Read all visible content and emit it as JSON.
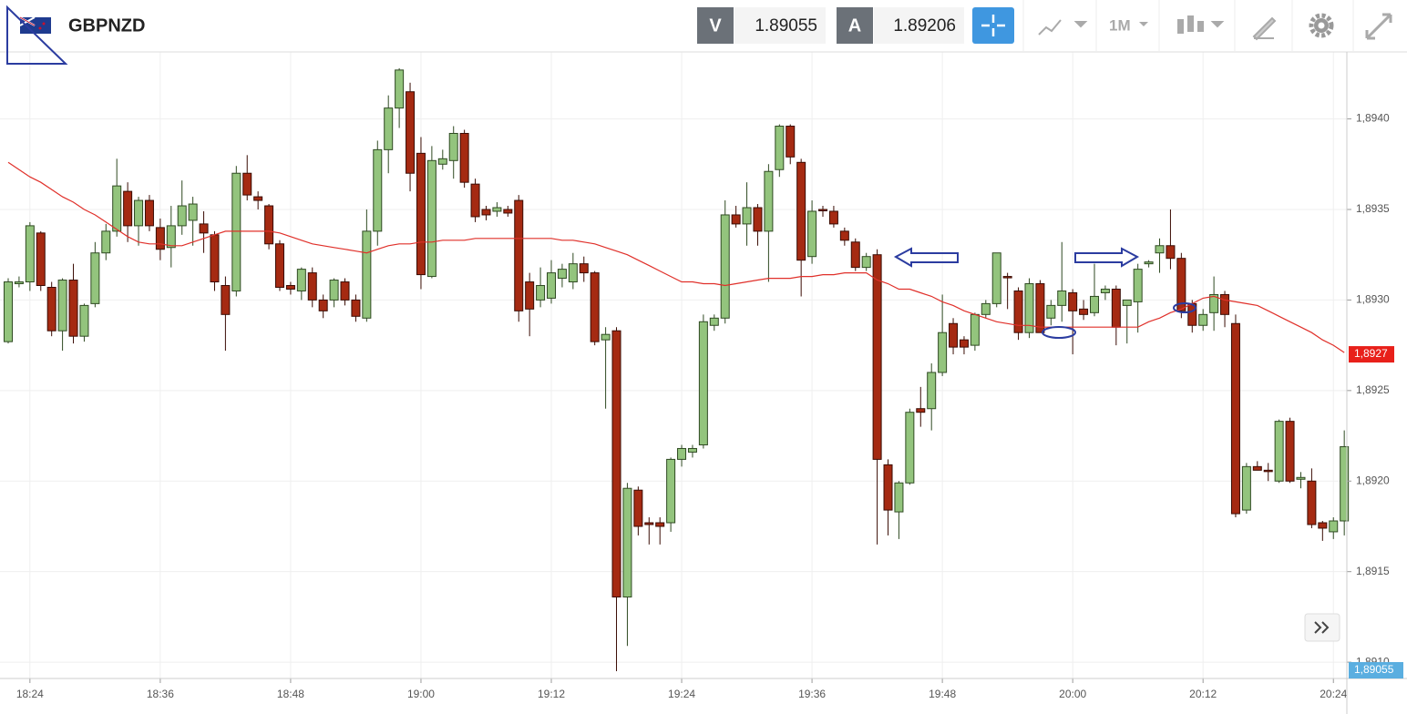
{
  "toolbar": {
    "symbol": "GBPNZD",
    "bid_label": "V",
    "bid": "1.89055",
    "ask_label": "A",
    "ask": "1.89206",
    "timeframe": "1M"
  },
  "chart_data": {
    "type": "candlestick",
    "categories": [
      null,
      null,
      "18:24",
      null,
      null,
      null,
      null,
      null,
      null,
      null,
      null,
      null,
      null,
      null,
      "18:36",
      null,
      null,
      null,
      null,
      null,
      null,
      null,
      null,
      null,
      null,
      null,
      "18:48",
      null,
      null,
      null,
      null,
      null,
      null,
      null,
      null,
      null,
      null,
      null,
      "19:00",
      null,
      null,
      null,
      null,
      null,
      null,
      null,
      null,
      null,
      null,
      null,
      "19:12",
      null,
      null,
      null,
      null,
      null,
      null,
      null,
      null,
      null,
      null,
      null,
      "19:24",
      null,
      null,
      null,
      null,
      null,
      null,
      null,
      null,
      null,
      null,
      null,
      "19:36",
      null,
      null,
      null,
      null,
      null,
      null,
      null,
      null,
      null,
      null,
      null,
      "19:48",
      null,
      null,
      null,
      null,
      null,
      null,
      null,
      null,
      null,
      null,
      null,
      "20:00",
      null,
      null,
      null,
      null,
      null,
      null,
      null,
      null,
      null,
      null,
      null,
      "20:12",
      null,
      null,
      null,
      null,
      null,
      null,
      null,
      null,
      null,
      null,
      null,
      "20:24",
      null
    ],
    "open": [
      1.89277,
      1.89309,
      1.8931,
      1.89337,
      1.89307,
      1.89283,
      1.89311,
      1.8928,
      1.89298,
      1.89326,
      1.89338,
      1.8936,
      1.89341,
      1.89355,
      1.8934,
      1.89329,
      1.89341,
      1.89344,
      1.89342,
      1.89336,
      1.89308,
      1.89305,
      1.8937,
      1.89357,
      1.89352,
      1.89331,
      1.89308,
      1.89305,
      1.89315,
      1.893,
      1.893,
      1.8931,
      1.893,
      1.8929,
      1.89338,
      1.89383,
      1.89406,
      1.89415,
      1.89381,
      1.89313,
      1.89375,
      1.89377,
      1.89392,
      1.89364,
      1.8935,
      1.89349,
      1.8935,
      1.89355,
      1.8931,
      1.893,
      1.89301,
      1.89312,
      1.8931,
      1.8932,
      1.89315,
      1.89278,
      1.89283,
      1.89136,
      1.89195,
      1.89177,
      1.89177,
      1.89177,
      1.89212,
      1.89216,
      1.8922,
      1.89286,
      1.8929,
      1.89347,
      1.89342,
      1.89351,
      1.89338,
      1.89372,
      1.89396,
      1.89376,
      1.89324,
      1.8935,
      1.89349,
      1.89338,
      1.89332,
      1.89318,
      1.89325,
      1.89209,
      1.89183,
      1.89199,
      1.8924,
      1.8924,
      1.8926,
      1.89287,
      1.89278,
      1.89275,
      1.89292,
      1.89298,
      1.89313,
      1.89305,
      1.89282,
      1.89309,
      1.8929,
      1.89297,
      1.89304,
      1.89295,
      1.89293,
      1.89304,
      1.89306,
      1.89297,
      1.89299,
      1.8932,
      1.89326,
      1.8933,
      1.89323,
      1.89298,
      1.89286,
      1.89293,
      1.89303,
      1.89287,
      1.89184,
      1.89208,
      1.89206,
      1.892,
      1.89233,
      1.89201,
      1.892,
      1.89177,
      1.89172,
      1.89178
    ],
    "high": [
      1.89312,
      1.89313,
      1.89343,
      1.89338,
      1.8931,
      1.89312,
      1.8932,
      1.89298,
      1.89332,
      1.89342,
      1.89378,
      1.89365,
      1.89357,
      1.89358,
      1.89345,
      1.89352,
      1.89366,
      1.89357,
      1.89349,
      1.89338,
      1.89313,
      1.89374,
      1.8938,
      1.8936,
      1.89353,
      1.89333,
      1.8931,
      1.89318,
      1.89318,
      1.89303,
      1.89312,
      1.89312,
      1.89303,
      1.8935,
      1.89388,
      1.89413,
      1.89428,
      1.8942,
      1.8939,
      1.89385,
      1.89383,
      1.89396,
      1.89394,
      1.89367,
      1.89352,
      1.89354,
      1.89352,
      1.89358,
      1.89315,
      1.89318,
      1.89322,
      1.8932,
      1.89326,
      1.89324,
      1.89316,
      1.89285,
      1.89285,
      1.89199,
      1.89197,
      1.8918,
      1.8918,
      1.89213,
      1.8922,
      1.8922,
      1.89292,
      1.89292,
      1.89355,
      1.89352,
      1.89365,
      1.89353,
      1.89375,
      1.89397,
      1.89397,
      1.89378,
      1.89355,
      1.89352,
      1.89352,
      1.8934,
      1.89334,
      1.89326,
      1.89328,
      1.89212,
      1.892,
      1.8924,
      1.89252,
      1.89265,
      1.89303,
      1.8929,
      1.8928,
      1.89293,
      1.893,
      1.89326,
      1.89315,
      1.89307,
      1.89312,
      1.89311,
      1.893,
      1.89332,
      1.89306,
      1.893,
      1.8932,
      1.89308,
      1.89308,
      1.893,
      1.8932,
      1.89322,
      1.89334,
      1.8935,
      1.89326,
      1.893,
      1.89295,
      1.89313,
      1.89305,
      1.89292,
      1.8921,
      1.89211,
      1.8921,
      1.89234,
      1.89235,
      1.89205,
      1.89207,
      1.89178,
      1.8918,
      1.89228
    ],
    "low": [
      1.89276,
      1.89307,
      1.89305,
      1.89305,
      1.8928,
      1.89272,
      1.89276,
      1.89277,
      1.89296,
      1.89322,
      1.89335,
      1.89332,
      1.8933,
      1.89338,
      1.89322,
      1.89318,
      1.89336,
      1.8933,
      1.89326,
      1.89305,
      1.89272,
      1.89302,
      1.89355,
      1.8935,
      1.89328,
      1.89305,
      1.89303,
      1.893,
      1.89296,
      1.8929,
      1.89296,
      1.89297,
      1.89288,
      1.89288,
      1.8933,
      1.8937,
      1.89395,
      1.8936,
      1.89306,
      1.89312,
      1.89372,
      1.89367,
      1.89362,
      1.89343,
      1.89344,
      1.89346,
      1.89346,
      1.89288,
      1.8928,
      1.89296,
      1.89298,
      1.89307,
      1.89306,
      1.8931,
      1.89275,
      1.8924,
      1.89095,
      1.89109,
      1.8917,
      1.89165,
      1.89165,
      1.89172,
      1.89208,
      1.89213,
      1.89218,
      1.89283,
      1.89287,
      1.8934,
      1.8933,
      1.8933,
      1.8931,
      1.89368,
      1.89375,
      1.89302,
      1.8932,
      1.89346,
      1.8934,
      1.8933,
      1.89316,
      1.89316,
      1.89165,
      1.8917,
      1.89168,
      1.89198,
      1.8923,
      1.89228,
      1.89258,
      1.8927,
      1.8927,
      1.89272,
      1.8929,
      1.89296,
      1.89295,
      1.89278,
      1.89279,
      1.89282,
      1.89286,
      1.89288,
      1.8927,
      1.89289,
      1.89291,
      1.893,
      1.89275,
      1.89276,
      1.89282,
      1.89318,
      1.89315,
      1.89317,
      1.8929,
      1.89282,
      1.89283,
      1.89283,
      1.89285,
      1.8918,
      1.89182,
      1.89206,
      1.892,
      1.89199,
      1.89199,
      1.89196,
      1.89174,
      1.89167,
      1.89168,
      1.8917
    ],
    "close": [
      1.8931,
      1.8931,
      1.89341,
      1.89308,
      1.89283,
      1.89311,
      1.8928,
      1.89297,
      1.89326,
      1.89338,
      1.89363,
      1.89341,
      1.89355,
      1.89341,
      1.89328,
      1.89341,
      1.89352,
      1.89353,
      1.89337,
      1.8931,
      1.89292,
      1.8937,
      1.89358,
      1.89355,
      1.89331,
      1.89307,
      1.89306,
      1.89317,
      1.893,
      1.89294,
      1.89311,
      1.893,
      1.89291,
      1.89338,
      1.89383,
      1.89406,
      1.89427,
      1.8937,
      1.89314,
      1.89377,
      1.89378,
      1.89392,
      1.89365,
      1.89346,
      1.89347,
      1.89351,
      1.89348,
      1.89294,
      1.89295,
      1.89308,
      1.89315,
      1.89317,
      1.8932,
      1.89315,
      1.89277,
      1.89281,
      1.89136,
      1.89196,
      1.89175,
      1.89176,
      1.89175,
      1.89212,
      1.89218,
      1.89218,
      1.89288,
      1.8929,
      1.89347,
      1.89342,
      1.89351,
      1.89338,
      1.89371,
      1.89396,
      1.89379,
      1.89322,
      1.89349,
      1.8935,
      1.89342,
      1.89333,
      1.89318,
      1.89324,
      1.89212,
      1.89184,
      1.89199,
      1.89238,
      1.89238,
      1.8926,
      1.89282,
      1.89274,
      1.89274,
      1.89292,
      1.89298,
      1.89326,
      1.89313,
      1.89282,
      1.89309,
      1.89282,
      1.89297,
      1.89305,
      1.89294,
      1.89292,
      1.89302,
      1.89306,
      1.89285,
      1.893,
      1.89317,
      1.89321,
      1.8933,
      1.89323,
      1.89294,
      1.89286,
      1.89292,
      1.89303,
      1.89292,
      1.89182,
      1.89208,
      1.89206,
      1.89206,
      1.89233,
      1.892,
      1.89202,
      1.89176,
      1.89174,
      1.89178,
      1.89219
    ],
    "up_color": "#93c47d",
    "down_color": "#a52a12",
    "lines": [
      {
        "color": "#e0302a",
        "values": [
          1.89376,
          1.89372,
          1.89368,
          1.89365,
          1.89361,
          1.89357,
          1.89354,
          1.8935,
          1.89347,
          1.89343,
          1.89339,
          1.89335,
          1.89332,
          1.89331,
          1.89331,
          1.8933,
          1.8933,
          1.89332,
          1.89334,
          1.89336,
          1.89338,
          1.89338,
          1.89338,
          1.89338,
          1.89338,
          1.89337,
          1.89335,
          1.89333,
          1.89331,
          1.8933,
          1.89329,
          1.89328,
          1.89327,
          1.89326,
          1.89328,
          1.8933,
          1.89331,
          1.89331,
          1.89332,
          1.89332,
          1.89333,
          1.89333,
          1.89333,
          1.89334,
          1.89334,
          1.89334,
          1.89334,
          1.89334,
          1.89334,
          1.89334,
          1.89334,
          1.89333,
          1.89333,
          1.89332,
          1.89331,
          1.89329,
          1.89327,
          1.89325,
          1.89322,
          1.89319,
          1.89316,
          1.89313,
          1.8931,
          1.8931,
          1.89309,
          1.89309,
          1.89308,
          1.89309,
          1.8931,
          1.89311,
          1.89312,
          1.89312,
          1.89312,
          1.89313,
          1.89313,
          1.89314,
          1.89314,
          1.89315,
          1.89315,
          1.89315,
          1.89311,
          1.89309,
          1.89306,
          1.89306,
          1.89304,
          1.89302,
          1.89299,
          1.89297,
          1.89294,
          1.89292,
          1.8929,
          1.89288,
          1.89287,
          1.89286,
          1.89286,
          1.89285,
          1.89285,
          1.89285,
          1.89285,
          1.89285,
          1.89285,
          1.89285,
          1.89285,
          1.89285,
          1.89285,
          1.89288,
          1.8929,
          1.89293,
          1.89295,
          1.89298,
          1.89301,
          1.89302,
          1.893,
          1.89299,
          1.89298,
          1.89297,
          1.89294,
          1.89291,
          1.89288,
          1.89285,
          1.89282,
          1.89278,
          1.89275,
          1.89271
        ]
      }
    ],
    "price_tags": [
      {
        "value": 1.8927,
        "label": "1,8927",
        "color": "#e8201a"
      }
    ],
    "bid_tag": "1,89055",
    "ylim": [
      1.89091,
      1.89437
    ],
    "yticks": [
      {
        "value": 1.891,
        "label": "1,8910"
      },
      {
        "value": 1.8915,
        "label": "1,8915"
      },
      {
        "value": 1.892,
        "label": "1,8920"
      },
      {
        "value": 1.8925,
        "label": "1,8925"
      },
      {
        "value": 1.893,
        "label": "1,8930"
      },
      {
        "value": 1.8935,
        "label": "1,8935"
      },
      {
        "value": 1.894,
        "label": "1,8940"
      }
    ],
    "grid": true
  }
}
